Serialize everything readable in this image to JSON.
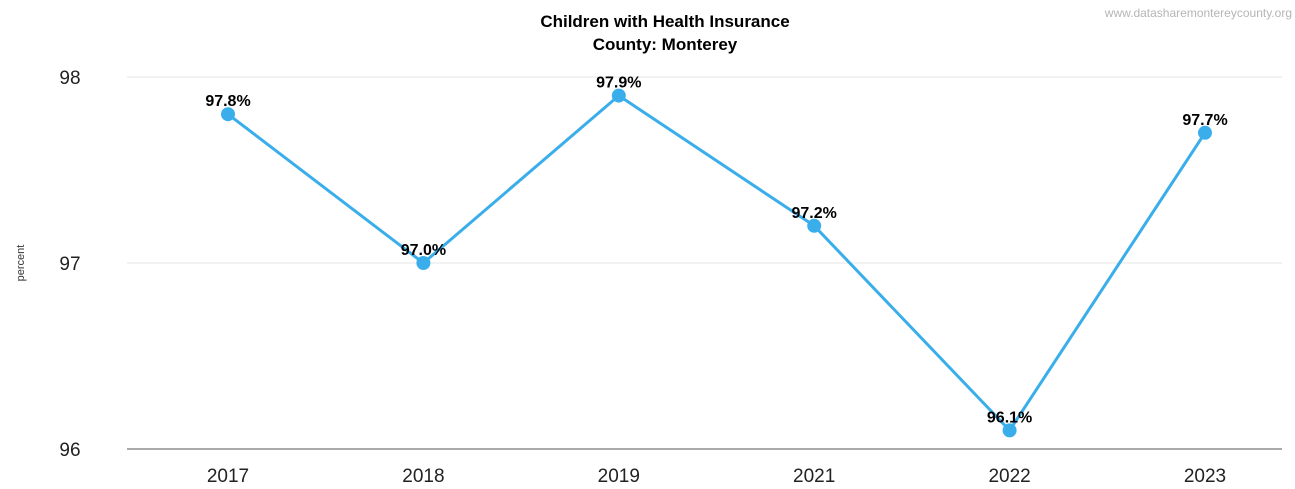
{
  "chart_data": {
    "type": "line",
    "title": "Children with Health Insurance",
    "subtitle": "County: Monterey",
    "watermark": "www.datasharemontereycounty.org",
    "xlabel": "",
    "ylabel": "percent",
    "categories": [
      "2017",
      "2018",
      "2019",
      "2021",
      "2022",
      "2023"
    ],
    "series": [
      {
        "values": [
          97.8,
          97.0,
          97.9,
          97.2,
          96.1,
          97.7
        ],
        "labels": [
          "97.8%",
          "97.0%",
          "97.9%",
          "97.2%",
          "96.1%",
          "97.7%"
        ],
        "color": "#3aaeea"
      }
    ],
    "ylim": [
      96,
      98
    ],
    "yticks": [
      "96",
      "97",
      "98"
    ],
    "grid": true,
    "legend": "none"
  }
}
